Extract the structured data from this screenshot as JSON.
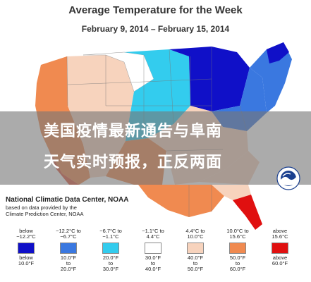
{
  "map": {
    "title": "Average Temperature for the Week",
    "subtitle": "February 9, 2014 – February 15, 2014",
    "colors": {
      "deep_blue": "#1010c8",
      "mid_blue": "#3a78e0",
      "cyan": "#33ccee",
      "white": "#ffffff",
      "light_peach": "#f7d3bd",
      "orange": "#f08a50",
      "red": "#e01010"
    }
  },
  "overlay": {
    "line1": "美国疫情最新通告与阜南",
    "line2": "天气实时预报，正反两面"
  },
  "source": {
    "main": "National Climatic Data Center, NOAA",
    "line2": "based on data provided by the",
    "line3": "Climate Prediction Center, NOAA"
  },
  "logo": {
    "icon": "noaa-logo-icon"
  },
  "legend": [
    {
      "top": "below\n−12.2°C",
      "bottom": "below\n10.0°F",
      "color": "#1010c8"
    },
    {
      "top": "−12.2°C to\n−6.7°C",
      "bottom": "10.0°F\nto\n20.0°F",
      "color": "#3a78e0"
    },
    {
      "top": "−6.7°C to\n−1.1°C",
      "bottom": "20.0°F\nto\n30.0°F",
      "color": "#33ccee"
    },
    {
      "top": "−1.1°C to\n4.4°C",
      "bottom": "30.0°F\nto\n40.0°F",
      "color": "#ffffff"
    },
    {
      "top": "4.4°C to\n10.0°C",
      "bottom": "40.0°F\nto\n50.0°F",
      "color": "#f7d3bd"
    },
    {
      "top": "10.0°C to\n15.6°C",
      "bottom": "50.0°F\nto\n60.0°F",
      "color": "#f08a50"
    },
    {
      "top": "above\n15.6°C",
      "bottom": "above\n60.0°F",
      "color": "#e01010"
    }
  ]
}
